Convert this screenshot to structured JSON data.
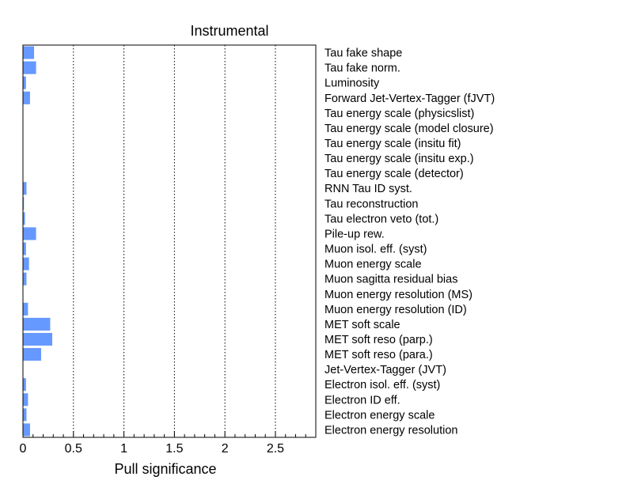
{
  "chart_data": {
    "type": "bar",
    "orientation": "horizontal",
    "title": "Instrumental",
    "xlabel": "Pull significance",
    "ylabel": "",
    "xlim": [
      0,
      2.9
    ],
    "xticks": [
      "0",
      "0.5",
      "1",
      "1.5",
      "2",
      "2.5"
    ],
    "grid": "vertical dotted",
    "bar_color": "#6699ff",
    "categories": [
      "Tau fake shape",
      "Tau fake norm.",
      "Luminosity",
      "Forward Jet-Vertex-Tagger (fJVT)",
      "Tau energy scale (physicslist)",
      "Tau energy scale (model closure)",
      "Tau energy scale (insitu fit)",
      "Tau energy scale (insitu exp.)",
      "Tau energy scale (detector)",
      "RNN Tau ID syst.",
      "Tau reconstruction",
      "Tau electron veto (tot.)",
      "Pile-up rew.",
      "Muon isol. eff. (syst)",
      "Muon energy scale",
      "Muon sagitta residual bias",
      "Muon energy resolution (MS)",
      "Muon energy resolution (ID)",
      "MET soft scale",
      "MET soft reso (parp.)",
      "MET soft reso (para.)",
      "Jet-Vertex-Tagger (JVT)",
      "Electron isol. eff. (syst)",
      "Electron ID eff.",
      "Electron energy scale",
      "Electron energy resolution"
    ],
    "values": [
      0.11,
      0.13,
      0.03,
      0.07,
      0,
      0,
      0,
      0,
      0,
      0.035,
      0.01,
      0.02,
      0.13,
      0.03,
      0.06,
      0.035,
      0,
      0.05,
      0.27,
      0.29,
      0.18,
      0,
      0.03,
      0.05,
      0.035,
      0.07
    ]
  }
}
